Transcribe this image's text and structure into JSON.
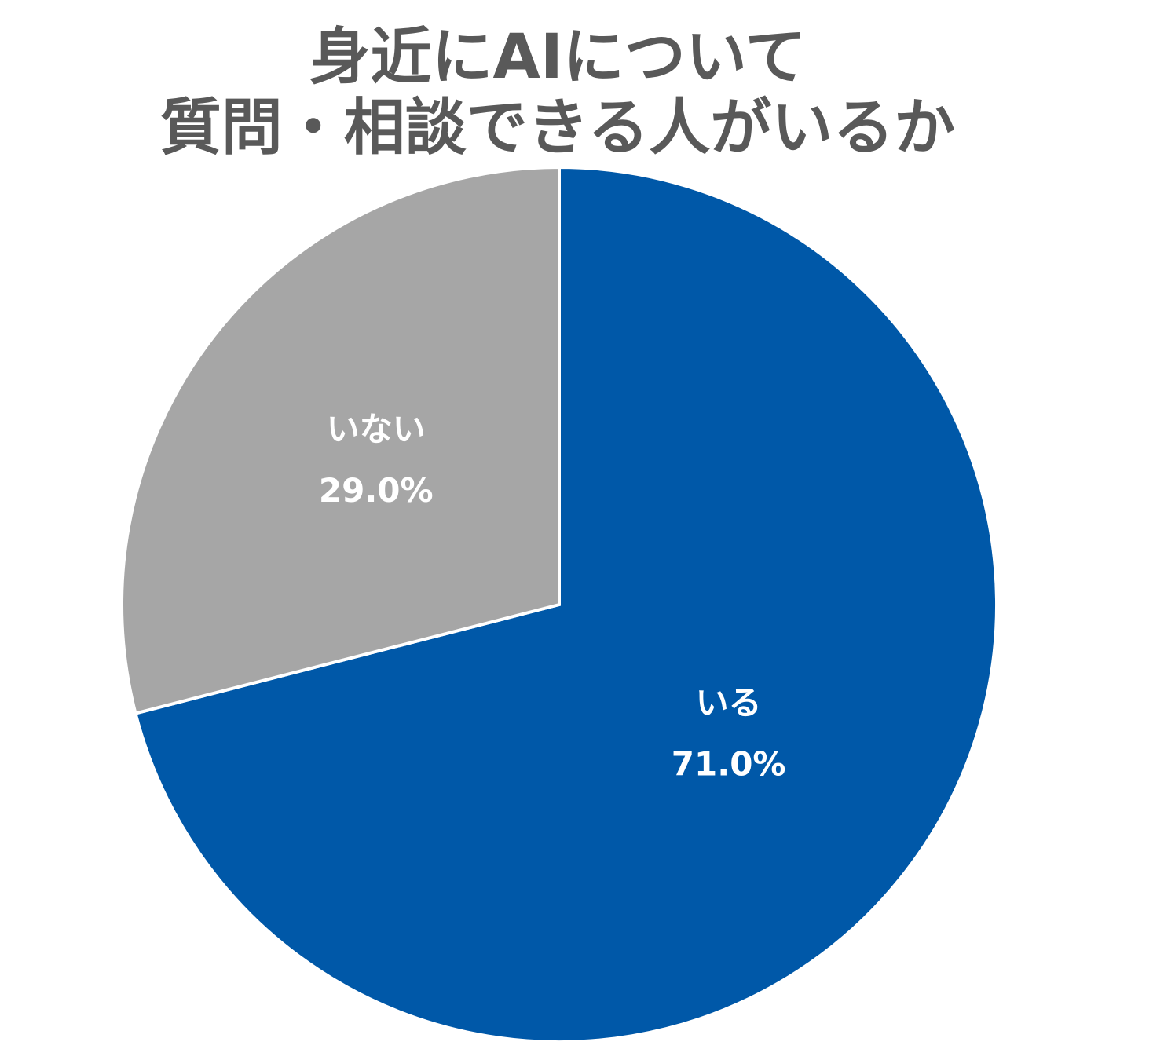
{
  "chart_data": {
    "type": "pie",
    "title_lines": [
      "身近にAIについて",
      "質問・相談できる人がいるか"
    ],
    "slices": [
      {
        "label": "いる",
        "value": 71.0,
        "value_label": "71.0%",
        "color": "#0058A8"
      },
      {
        "label": "いない",
        "value": 29.0,
        "value_label": "29.0%",
        "color": "#A6A6A6"
      }
    ],
    "start_angle": "12 o'clock",
    "direction": "clockwise",
    "slice_border_color": "#FFFFFF",
    "legend": "none"
  }
}
